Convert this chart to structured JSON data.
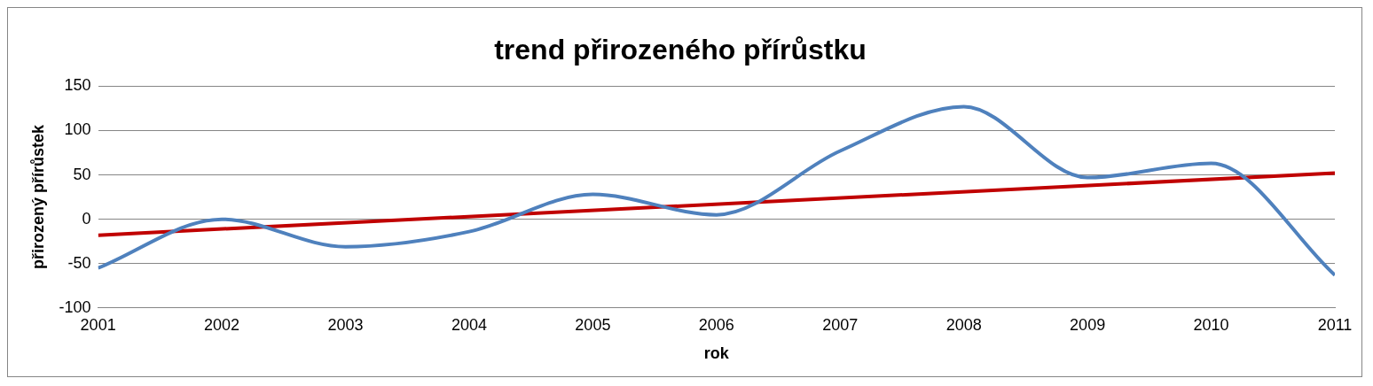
{
  "chart_data": {
    "type": "line",
    "title": "trend přirozeného přírůstku",
    "xlabel": "rok",
    "ylabel": "přirozený přírůstek",
    "x": [
      2001,
      2002,
      2003,
      2004,
      2005,
      2006,
      2007,
      2008,
      2009,
      2010,
      2011
    ],
    "series": [
      {
        "color": "#4f81bd",
        "values": [
          -55,
          0,
          -31,
          -14,
          28,
          5,
          77,
          127,
          47,
          63,
          -63
        ]
      },
      {
        "color": "#c00000",
        "x": [
          2001,
          2011
        ],
        "values": [
          -18,
          52
        ]
      }
    ],
    "xlim": [
      2001,
      2011
    ],
    "xticks": [
      2001,
      2002,
      2003,
      2004,
      2005,
      2006,
      2007,
      2008,
      2009,
      2010,
      2011
    ],
    "ylim": [
      -100,
      150
    ],
    "yticks": [
      -100,
      -50,
      0,
      50,
      100,
      150
    ],
    "grid": "y",
    "legend": false,
    "marker": "none",
    "line_style": "solid"
  }
}
